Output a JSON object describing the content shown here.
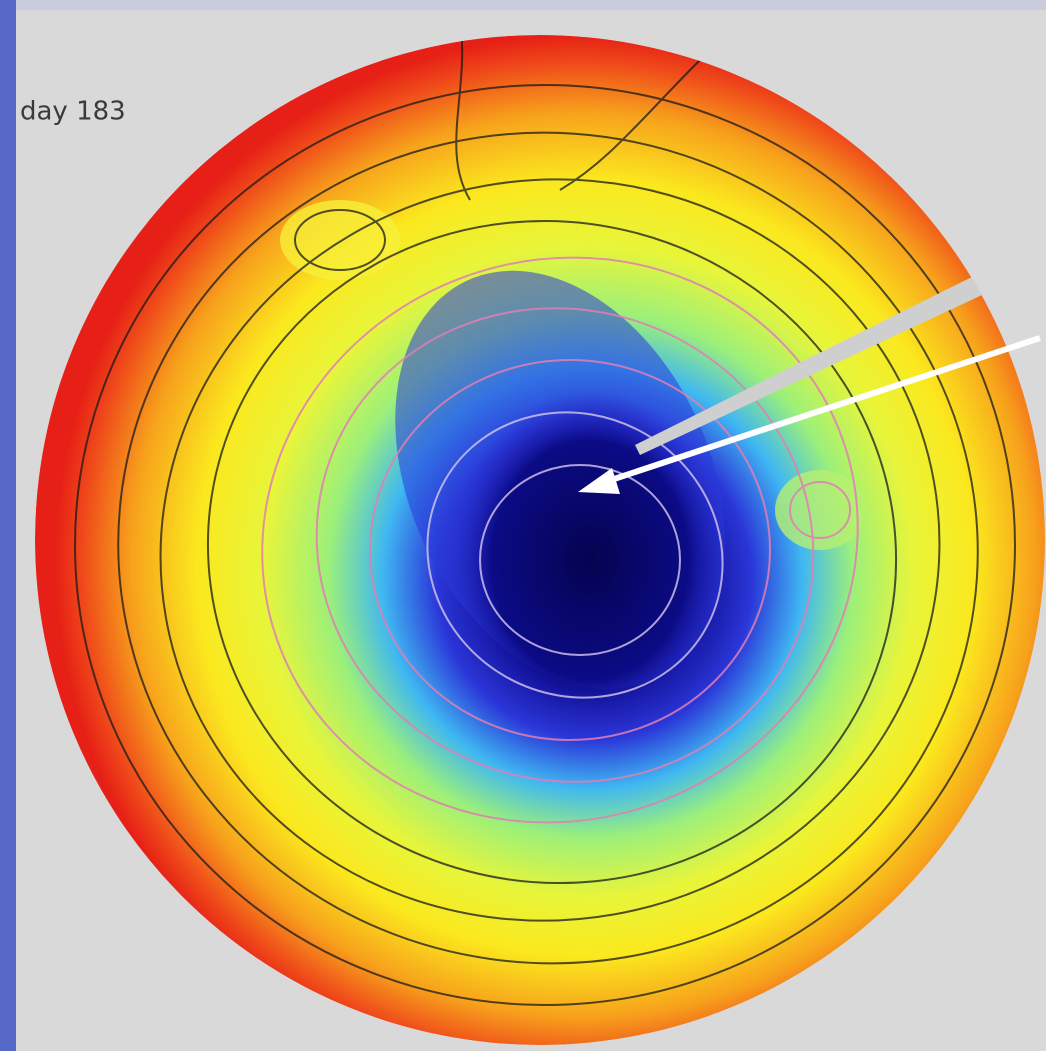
{
  "label": "day 183"
}
